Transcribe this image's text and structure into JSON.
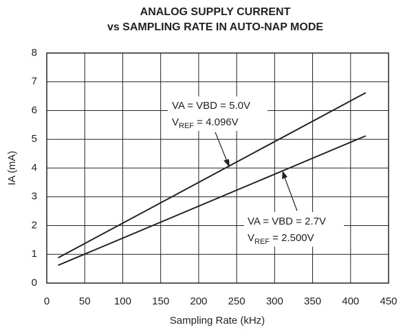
{
  "chart_data": {
    "type": "line",
    "title": [
      "ANALOG SUPPLY CURRENT",
      "vs SAMPLING RATE IN AUTO-NAP MODE"
    ],
    "x_label": "Sampling Rate (kHz)",
    "y_label": "IA (mA)",
    "xlim": [
      0,
      450
    ],
    "xticks": [
      0,
      50,
      100,
      150,
      200,
      250,
      300,
      350,
      400,
      450
    ],
    "ylim": [
      0,
      8
    ],
    "yticks": [
      0,
      1,
      2,
      3,
      4,
      5,
      6,
      7,
      8
    ],
    "grid": true,
    "x": [
      15,
      420
    ],
    "series": [
      {
        "color": "#222222",
        "values": [
          0.88,
          6.62
        ]
      },
      {
        "color": "#222222",
        "values": [
          0.62,
          5.12
        ]
      }
    ],
    "annotations": [
      {
        "line1": "VA = VBD = 5.0V",
        "v": "V",
        "sub": "REF",
        "rest": " = 4.096V"
      },
      {
        "line1": "VA = VBD = 2.7V",
        "v": "V",
        "sub": "REF",
        "rest": " = 2.500V"
      }
    ]
  }
}
